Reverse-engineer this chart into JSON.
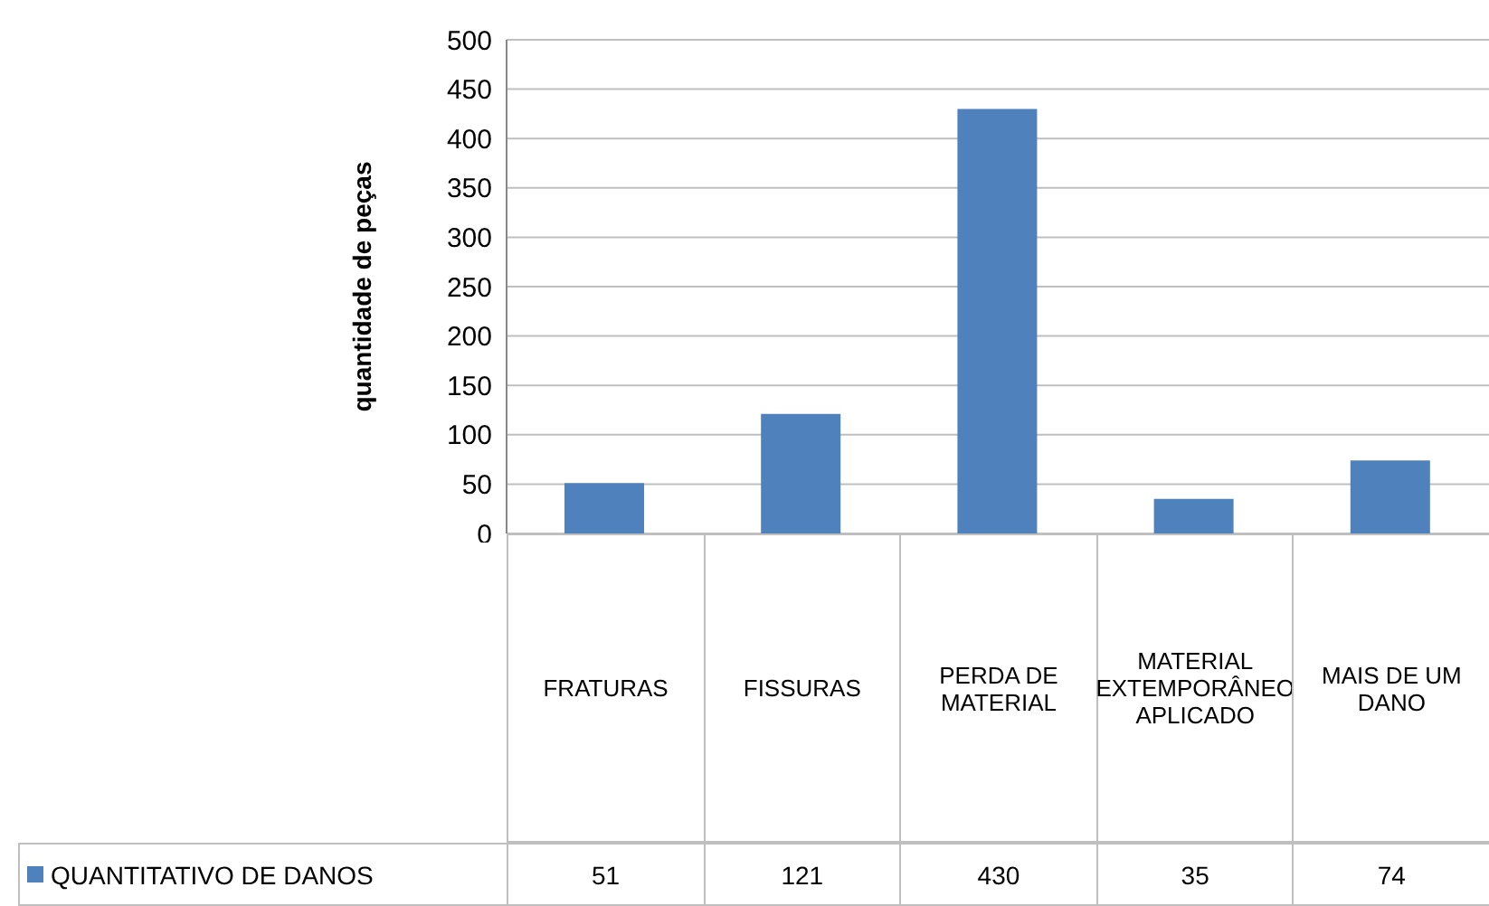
{
  "chart_data": {
    "type": "bar",
    "ylabel": "quantidade de peças",
    "categories": [
      "FRATURAS",
      "FISSURAS",
      "PERDA DE MATERIAL",
      "MATERIAL EXTEMPORÂNEO APLICADO",
      "MAIS DE UM DANO"
    ],
    "series": [
      {
        "name": "QUANTITATIVO DE DANOS",
        "color": "#4f81bd",
        "values": [
          51,
          121,
          430,
          35,
          74
        ]
      }
    ],
    "ylim": [
      0,
      500
    ],
    "yticks": [
      0,
      50,
      100,
      150,
      200,
      250,
      300,
      350,
      400,
      450,
      500
    ],
    "grid": "y",
    "legend": "bottom left",
    "data_labels": true
  }
}
